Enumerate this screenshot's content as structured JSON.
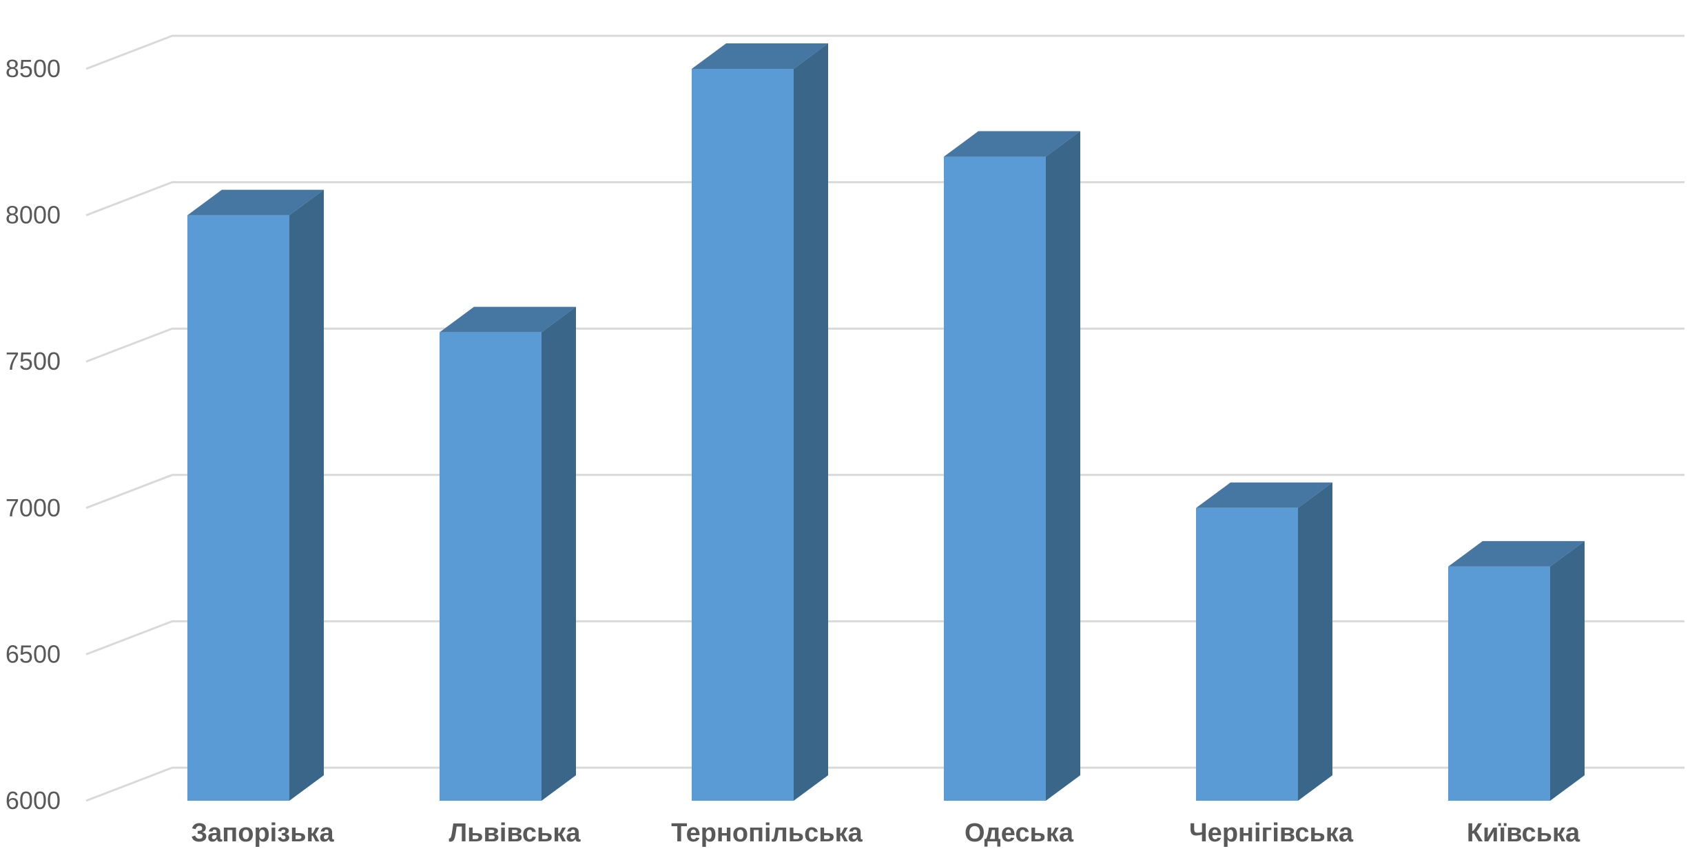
{
  "chart_data": {
    "type": "bar",
    "style": "3d-column",
    "categories": [
      "Запорізька",
      "Львівська",
      "Тернопільська",
      "Одеська",
      "Чернігівська",
      "Київська"
    ],
    "values": [
      8000,
      7600,
      8500,
      8200,
      7000,
      6800
    ],
    "ylim": [
      6000,
      8500
    ],
    "yticks": [
      "6000",
      "6500",
      "7000",
      "7500",
      "8000",
      "8500"
    ],
    "ytick_values": [
      6000,
      6500,
      7000,
      7500,
      8000,
      8500
    ],
    "grid": true,
    "legend": "none",
    "title": "",
    "xlabel": "",
    "ylabel": "",
    "colors": {
      "front": "#5b9bd5",
      "side": "#3a6689",
      "top": "#4677a3",
      "grid": "#d9d9d9",
      "text": "#595959"
    }
  }
}
